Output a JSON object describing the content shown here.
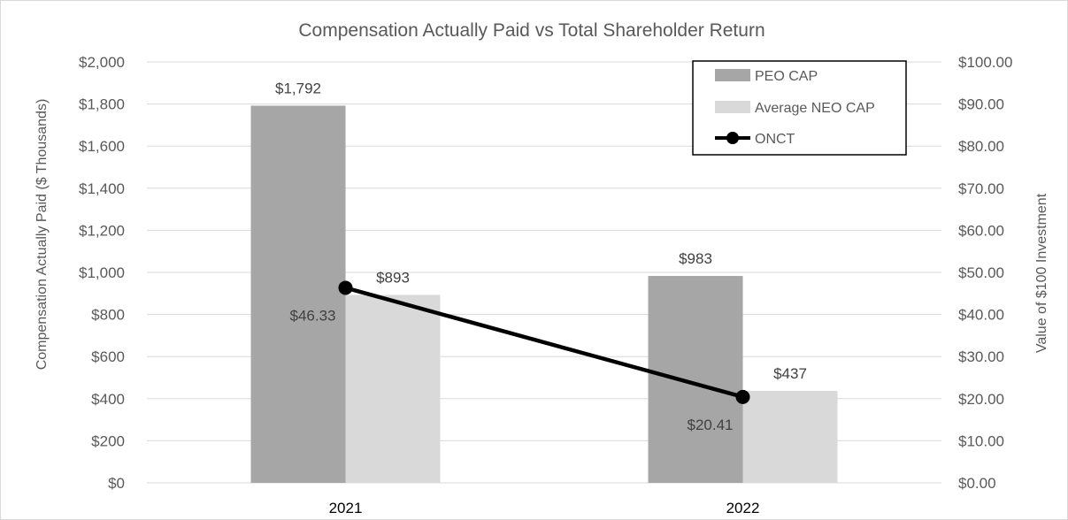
{
  "chart_data": {
    "type": "bar",
    "title": "Compensation Actually Paid vs Total Shareholder Return",
    "categories": [
      "2021",
      "2022"
    ],
    "series": [
      {
        "name": "PEO CAP",
        "axis": "left",
        "kind": "bar",
        "color": "#a6a6a6",
        "values": [
          1792,
          983
        ],
        "labels": [
          "$1,792",
          "$983"
        ]
      },
      {
        "name": "Average NEO CAP",
        "axis": "left",
        "kind": "bar",
        "color": "#d9d9d9",
        "values": [
          893,
          437
        ],
        "labels": [
          "$893",
          "$437"
        ]
      },
      {
        "name": "ONCT",
        "axis": "right",
        "kind": "line",
        "color": "#000000",
        "values": [
          46.33,
          20.41
        ],
        "labels": [
          "$46.33",
          "$20.41"
        ]
      }
    ],
    "ylabel": "Compensation Actually Paid ($ Thousands)",
    "y2label": "Value of $100 Investment",
    "ylim": [
      0,
      2000
    ],
    "y2lim": [
      0,
      100
    ],
    "yticks": [
      0,
      200,
      400,
      600,
      800,
      1000,
      1200,
      1400,
      1600,
      1800,
      2000
    ],
    "ytick_labels": [
      "$0",
      "$200",
      "$400",
      "$600",
      "$800",
      "$1,000",
      "$1,200",
      "$1,400",
      "$1,600",
      "$1,800",
      "$2,000"
    ],
    "y2ticks": [
      0,
      10,
      20,
      30,
      40,
      50,
      60,
      70,
      80,
      90,
      100
    ],
    "y2tick_labels": [
      "$0.00",
      "$10.00",
      "$20.00",
      "$30.00",
      "$40.00",
      "$50.00",
      "$60.00",
      "$70.00",
      "$80.00",
      "$90.00",
      "$100.00"
    ],
    "grid": true,
    "legend_position": "top-right"
  }
}
